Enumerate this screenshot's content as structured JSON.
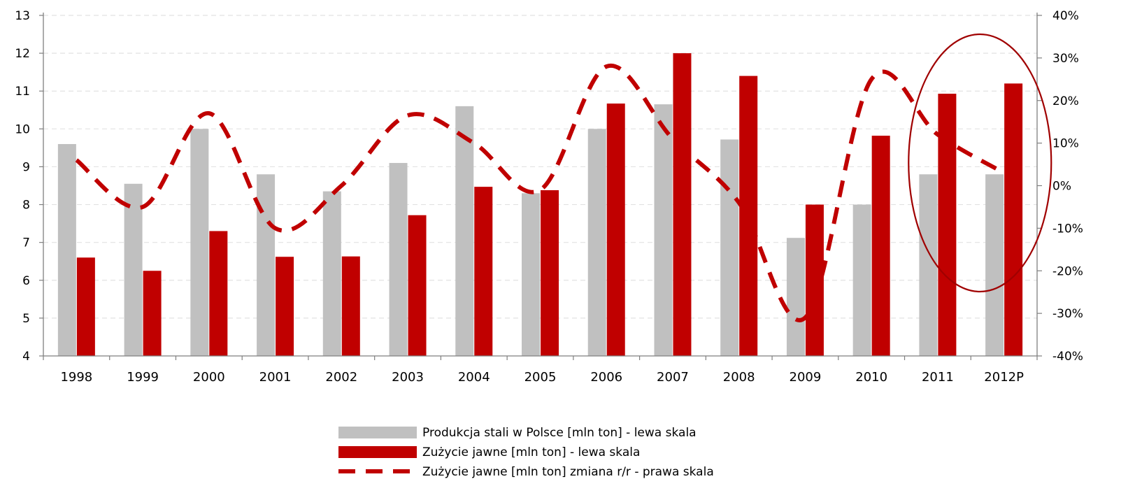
{
  "chart_data": {
    "type": "bar",
    "categories": [
      "1998",
      "1999",
      "2000",
      "2001",
      "2002",
      "2003",
      "2004",
      "2005",
      "2006",
      "2007",
      "2008",
      "2009",
      "2010",
      "2011",
      "2012P"
    ],
    "y_left": {
      "ylim": [
        4,
        13
      ],
      "ticks": [
        "13",
        "12",
        "11",
        "10",
        "9",
        "8",
        "7",
        "6",
        "5",
        "4"
      ]
    },
    "y_right": {
      "ylim": [
        -40,
        40
      ],
      "ticks": [
        "40%",
        "30%",
        "20%",
        "10%",
        "0%",
        "-10%",
        "-20%",
        "-30%",
        "-40%"
      ]
    },
    "grid": "horizontal dashed",
    "legend_position": "bottom-center",
    "series": [
      {
        "name": "Produkcja stali w Polsce [mln ton] - lewa skala",
        "type": "bar",
        "axis": "left",
        "color": "#c0c0c0",
        "values": [
          9.6,
          8.55,
          10.0,
          8.8,
          8.35,
          9.1,
          10.6,
          8.3,
          10.0,
          10.65,
          9.72,
          7.12,
          8.0,
          8.8,
          8.8
        ]
      },
      {
        "name": "Zużycie jawne [mln ton] - lewa skala",
        "type": "bar",
        "axis": "left",
        "color": "#c00000",
        "values": [
          6.6,
          6.25,
          7.3,
          6.62,
          6.63,
          7.72,
          8.47,
          8.38,
          10.67,
          12.0,
          11.4,
          8.0,
          9.82,
          10.93,
          11.2
        ]
      },
      {
        "name": "Zużycie jawne [mln ton] zmiana r/r - prawa skala",
        "type": "line",
        "style": "dashed",
        "axis": "right",
        "color": "#c00000",
        "values": [
          6,
          -5,
          17,
          -10,
          0,
          16.5,
          10,
          -1,
          28,
          11,
          -4,
          -31,
          25,
          12,
          3
        ]
      }
    ],
    "annotation": "circle-highlighting-2011-2012P"
  }
}
